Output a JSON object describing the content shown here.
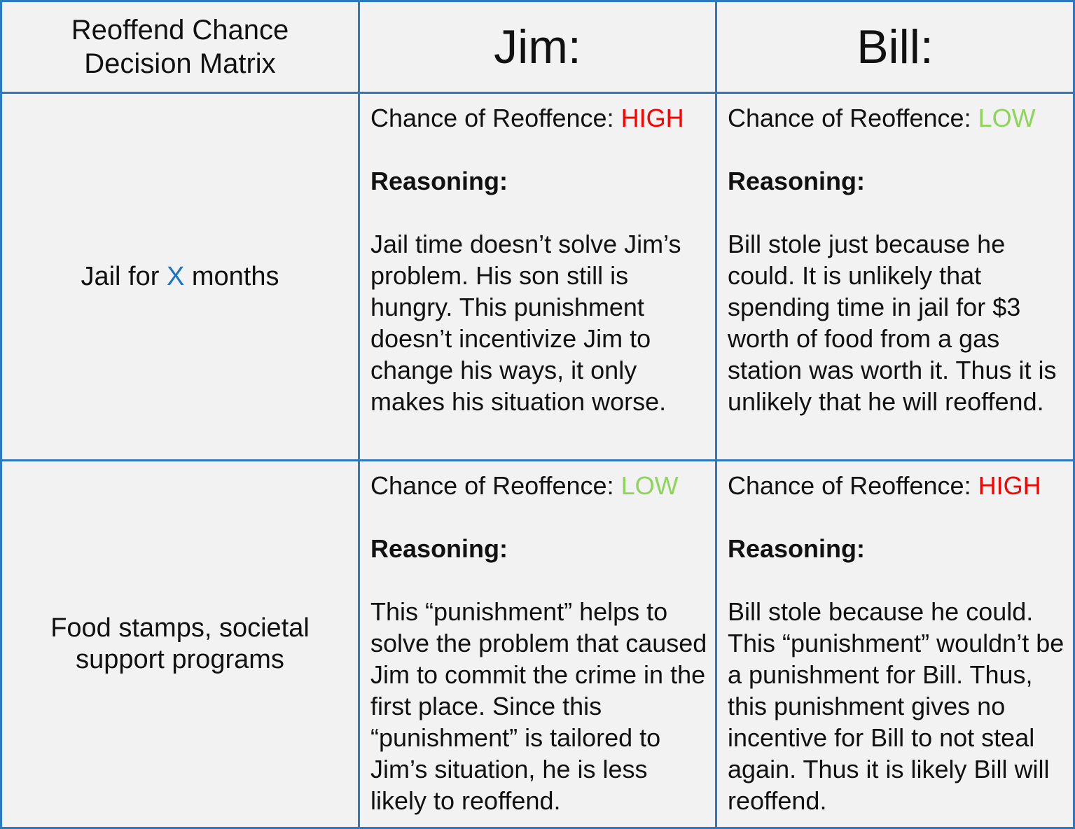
{
  "header": {
    "corner_line1": "Reoffend Chance",
    "corner_line2": "Decision Matrix",
    "col_jim": "Jim:",
    "col_bill": "Bill:"
  },
  "rows": [
    {
      "label_prefix": "Jail for ",
      "label_accent": "X",
      "label_suffix": " months",
      "jim": {
        "chance_label": "Chance of Reoffence: ",
        "level": "HIGH",
        "reasoning_label": "Reasoning:",
        "reasoning": "Jail time doesn’t solve Jim’s problem.  His son still is hungry.  This punishment doesn’t incentivize Jim to change his ways, it only makes his situation worse."
      },
      "bill": {
        "chance_label": "Chance of Reoffence: ",
        "level": "LOW",
        "reasoning_label": "Reasoning:",
        "reasoning": "Bill stole just because he could.  It is unlikely that spending time in jail for $3 worth of food from a gas station was worth it.  Thus it is unlikely that he will reoffend."
      }
    },
    {
      "label": "Food stamps, societal support programs",
      "jim": {
        "chance_label": "Chance of Reoffence: ",
        "level": "LOW",
        "reasoning_label": "Reasoning:",
        "reasoning": "This “punishment” helps to solve the problem that caused Jim to commit the crime in the first place.  Since this “punishment” is tailored to Jim’s situation, he is less likely to reoffend."
      },
      "bill": {
        "chance_label": "Chance of Reoffence: ",
        "level": "HIGH",
        "reasoning_label": "Reasoning:",
        "reasoning": "Bill stole because he could.  This “punishment” wouldn’t be a punishment for Bill.  Thus, this punishment gives no incentive for Bill to not steal again.  Thus it is likely Bill will reoffend."
      }
    }
  ],
  "colors": {
    "grid": "#2e78c0",
    "background": "#f2f2f2",
    "high": "#ff0000",
    "low": "#8ed45a",
    "accent": "#1a73c8"
  }
}
